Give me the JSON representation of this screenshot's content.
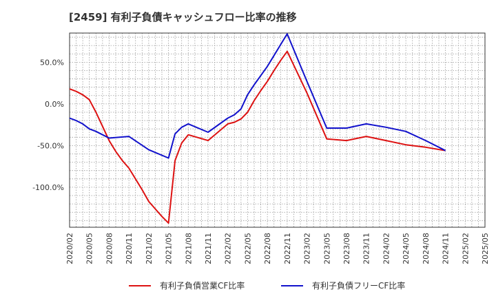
{
  "chart_data": {
    "type": "line",
    "title": "[2459]  有利子負債キャッシュフロー比率の推移",
    "xlabel": "",
    "ylabel": "",
    "x_ticks": [
      "2020/02",
      "2020/05",
      "2020/08",
      "2020/11",
      "2021/02",
      "2021/05",
      "2021/08",
      "2021/11",
      "2022/02",
      "2022/05",
      "2022/08",
      "2022/11",
      "2023/02",
      "2023/05",
      "2023/08",
      "2023/11",
      "2024/02",
      "2024/05",
      "2024/08",
      "2024/11",
      "2025/02",
      "2025/05"
    ],
    "y_ticks": [
      {
        "value": 50,
        "label": "50.0%"
      },
      {
        "value": 0,
        "label": "0.0%"
      },
      {
        "value": -50,
        "label": "-50.0%"
      },
      {
        "value": -100,
        "label": "-100.0%"
      }
    ],
    "ylim": [
      -148,
      85
    ],
    "xlim": [
      "2020/02",
      "2025/05"
    ],
    "grid": true,
    "legend_position": "bottom",
    "series": [
      {
        "name": "有利子負債営業CF比率",
        "color": "#dd1111",
        "points": [
          [
            "2020/02",
            18
          ],
          [
            "2020/03",
            15
          ],
          [
            "2020/04",
            11
          ],
          [
            "2020/05",
            5
          ],
          [
            "2020/06",
            -10
          ],
          [
            "2020/07",
            -27
          ],
          [
            "2020/08",
            -44
          ],
          [
            "2020/09",
            -57
          ],
          [
            "2020/10",
            -68
          ],
          [
            "2020/11",
            -77
          ],
          [
            "2020/12",
            -90
          ],
          [
            "2021/01",
            -103
          ],
          [
            "2021/02",
            -117
          ],
          [
            "2021/03",
            -126
          ],
          [
            "2021/04",
            -135
          ],
          [
            "2021/05",
            -143
          ],
          [
            "2021/06",
            -68
          ],
          [
            "2021/07",
            -47
          ],
          [
            "2021/08",
            -37
          ],
          [
            "2021/11",
            -44
          ],
          [
            "2022/02",
            -24
          ],
          [
            "2022/03",
            -22
          ],
          [
            "2022/04",
            -18
          ],
          [
            "2022/05",
            -10
          ],
          [
            "2022/06",
            4
          ],
          [
            "2022/07",
            16
          ],
          [
            "2022/08",
            27
          ],
          [
            "2022/09",
            40
          ],
          [
            "2022/10",
            52
          ],
          [
            "2022/11",
            63
          ],
          [
            "2023/02",
            13
          ],
          [
            "2023/05",
            -42
          ],
          [
            "2023/08",
            -44
          ],
          [
            "2023/11",
            -39
          ],
          [
            "2024/02",
            -44
          ],
          [
            "2024/05",
            -49
          ],
          [
            "2024/08",
            -52
          ],
          [
            "2024/11",
            -56
          ]
        ]
      },
      {
        "name": "有利子負債フリーCF比率",
        "color": "#1111cc",
        "points": [
          [
            "2020/02",
            -17
          ],
          [
            "2020/03",
            -20
          ],
          [
            "2020/04",
            -24
          ],
          [
            "2020/05",
            -30
          ],
          [
            "2020/06",
            -33
          ],
          [
            "2020/07",
            -37
          ],
          [
            "2020/08",
            -41
          ],
          [
            "2020/11",
            -39
          ],
          [
            "2021/02",
            -55
          ],
          [
            "2021/05",
            -65
          ],
          [
            "2021/06",
            -36
          ],
          [
            "2021/07",
            -28
          ],
          [
            "2021/08",
            -24
          ],
          [
            "2021/11",
            -34
          ],
          [
            "2022/02",
            -17
          ],
          [
            "2022/03",
            -13
          ],
          [
            "2022/04",
            -6
          ],
          [
            "2022/05",
            11
          ],
          [
            "2022/06",
            23
          ],
          [
            "2022/07",
            34
          ],
          [
            "2022/08",
            45
          ],
          [
            "2022/09",
            58
          ],
          [
            "2022/10",
            71
          ],
          [
            "2022/11",
            84
          ],
          [
            "2023/02",
            27
          ],
          [
            "2023/05",
            -29
          ],
          [
            "2023/08",
            -29
          ],
          [
            "2023/11",
            -24
          ],
          [
            "2024/02",
            -28
          ],
          [
            "2024/05",
            -33
          ],
          [
            "2024/08",
            -44
          ],
          [
            "2024/11",
            -56
          ]
        ]
      }
    ]
  }
}
